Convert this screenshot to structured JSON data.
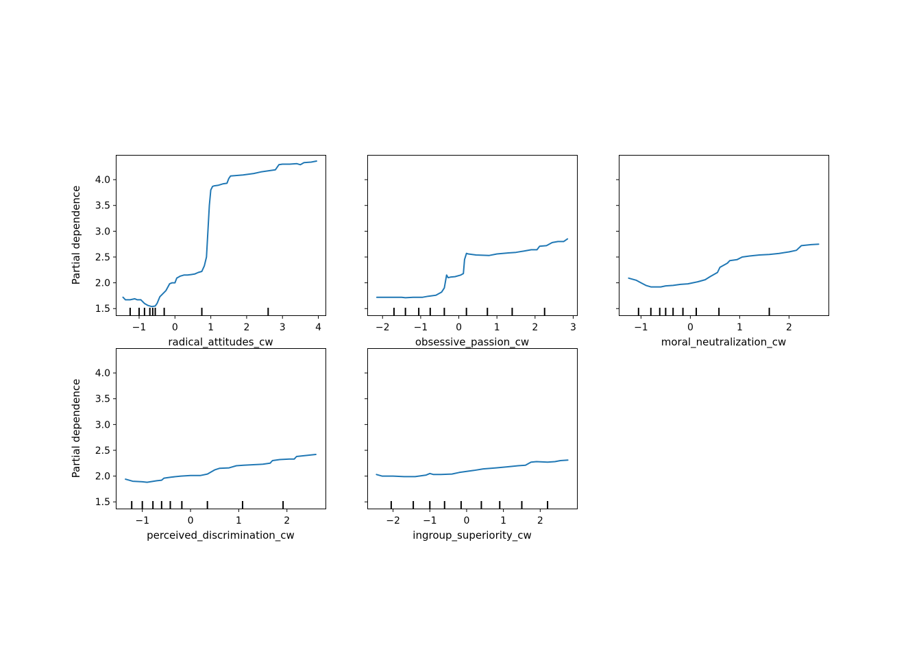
{
  "chart_data": [
    {
      "type": "line",
      "xlabel": "radical_attitudes_cw",
      "ylabel": "Partial dependence",
      "xlim": [
        -1.65,
        4.2
      ],
      "ylim": [
        1.37,
        4.48
      ],
      "xticks": [
        -1,
        0,
        1,
        2,
        3,
        4
      ],
      "yticks": [
        1.5,
        2.0,
        2.5,
        3.0,
        3.5,
        4.0
      ],
      "ytick_labels_visible": true,
      "color": "#1f77b4",
      "x": [
        -1.45,
        -1.38,
        -1.25,
        -1.12,
        -1.05,
        -0.95,
        -0.85,
        -0.75,
        -0.65,
        -0.55,
        -0.5,
        -0.42,
        -0.35,
        -0.25,
        -0.15,
        -0.08,
        0.0,
        0.05,
        0.15,
        0.25,
        0.35,
        0.45,
        0.55,
        0.65,
        0.75,
        0.82,
        0.88,
        0.92,
        0.96,
        1.0,
        1.05,
        1.1,
        1.2,
        1.35,
        1.45,
        1.5,
        1.55,
        1.7,
        1.9,
        2.2,
        2.4,
        2.6,
        2.8,
        2.9,
        3.0,
        3.2,
        3.4,
        3.5,
        3.6,
        3.8,
        3.95
      ],
      "y": [
        1.72,
        1.67,
        1.67,
        1.69,
        1.67,
        1.67,
        1.6,
        1.56,
        1.54,
        1.55,
        1.6,
        1.73,
        1.78,
        1.85,
        1.98,
        2.0,
        2.0,
        2.09,
        2.13,
        2.15,
        2.15,
        2.16,
        2.17,
        2.2,
        2.22,
        2.33,
        2.5,
        3.0,
        3.5,
        3.8,
        3.87,
        3.88,
        3.89,
        3.92,
        3.93,
        4.02,
        4.07,
        4.08,
        4.09,
        4.12,
        4.15,
        4.17,
        4.19,
        4.29,
        4.3,
        4.3,
        4.31,
        4.29,
        4.33,
        4.34,
        4.36
      ],
      "rug": [
        -1.25,
        -1.0,
        -0.85,
        -0.7,
        -0.62,
        -0.55,
        -0.3,
        0.75,
        2.6
      ]
    },
    {
      "type": "line",
      "xlabel": "obsessive_passion_cw",
      "ylabel": "",
      "xlim": [
        -2.4,
        3.1
      ],
      "ylim": [
        1.37,
        4.48
      ],
      "xticks": [
        -2,
        -1,
        0,
        1,
        2,
        3
      ],
      "yticks": [
        1.5,
        2.0,
        2.5,
        3.0,
        3.5,
        4.0
      ],
      "ytick_labels_visible": false,
      "color": "#1f77b4",
      "x": [
        -2.15,
        -1.8,
        -1.5,
        -1.4,
        -1.2,
        -0.95,
        -0.8,
        -0.6,
        -0.45,
        -0.38,
        -0.32,
        -0.28,
        -0.22,
        -0.1,
        0.05,
        0.12,
        0.15,
        0.2,
        0.25,
        0.45,
        0.8,
        1.0,
        1.3,
        1.5,
        1.75,
        1.9,
        2.05,
        2.12,
        2.3,
        2.45,
        2.6,
        2.75,
        2.85
      ],
      "y": [
        1.72,
        1.72,
        1.72,
        1.71,
        1.72,
        1.72,
        1.74,
        1.76,
        1.82,
        1.9,
        2.15,
        2.1,
        2.11,
        2.12,
        2.15,
        2.18,
        2.45,
        2.57,
        2.56,
        2.54,
        2.53,
        2.56,
        2.58,
        2.59,
        2.62,
        2.64,
        2.64,
        2.71,
        2.72,
        2.78,
        2.8,
        2.8,
        2.85
      ],
      "rug": [
        -1.7,
        -1.4,
        -1.05,
        -0.75,
        -0.38,
        0.2,
        0.75,
        1.4,
        2.25
      ]
    },
    {
      "type": "line",
      "xlabel": "moral_neutralization_cw",
      "ylabel": "",
      "xlim": [
        -1.45,
        2.8
      ],
      "ylim": [
        1.37,
        4.48
      ],
      "xticks": [
        -1,
        0,
        1,
        2
      ],
      "yticks": [
        1.5,
        2.0,
        2.5,
        3.0,
        3.5,
        4.0
      ],
      "ytick_labels_visible": false,
      "color": "#1f77b4",
      "x": [
        -1.25,
        -1.1,
        -1.0,
        -0.9,
        -0.8,
        -0.7,
        -0.6,
        -0.5,
        -0.35,
        -0.2,
        -0.05,
        0.05,
        0.15,
        0.3,
        0.4,
        0.55,
        0.6,
        0.75,
        0.8,
        0.95,
        1.05,
        1.2,
        1.4,
        1.6,
        1.8,
        2.0,
        2.15,
        2.25,
        2.45,
        2.6
      ],
      "y": [
        2.09,
        2.05,
        2.0,
        1.95,
        1.92,
        1.92,
        1.92,
        1.94,
        1.95,
        1.97,
        1.98,
        2.0,
        2.02,
        2.06,
        2.12,
        2.2,
        2.3,
        2.38,
        2.43,
        2.45,
        2.5,
        2.52,
        2.54,
        2.55,
        2.57,
        2.6,
        2.63,
        2.72,
        2.74,
        2.75
      ],
      "rug": [
        -1.05,
        -0.8,
        -0.62,
        -0.5,
        -0.35,
        -0.15,
        0.12,
        0.58,
        1.6
      ]
    },
    {
      "type": "line",
      "xlabel": "perceived_discrimination_cw",
      "ylabel": "Partial dependence",
      "xlim": [
        -1.55,
        2.8
      ],
      "ylim": [
        1.37,
        4.48
      ],
      "xticks": [
        -1,
        0,
        1,
        2
      ],
      "yticks": [
        1.5,
        2.0,
        2.5,
        3.0,
        3.5,
        4.0
      ],
      "ytick_labels_visible": true,
      "color": "#1f77b4",
      "x": [
        -1.35,
        -1.2,
        -1.0,
        -0.9,
        -0.7,
        -0.6,
        -0.55,
        -0.4,
        -0.2,
        0.0,
        0.2,
        0.35,
        0.5,
        0.6,
        0.8,
        0.95,
        1.1,
        1.3,
        1.5,
        1.65,
        1.7,
        1.85,
        2.05,
        2.15,
        2.2,
        2.4,
        2.6
      ],
      "y": [
        1.94,
        1.9,
        1.89,
        1.88,
        1.91,
        1.92,
        1.96,
        1.98,
        2.0,
        2.01,
        2.01,
        2.04,
        2.12,
        2.15,
        2.16,
        2.2,
        2.21,
        2.22,
        2.23,
        2.25,
        2.3,
        2.32,
        2.33,
        2.33,
        2.38,
        2.4,
        2.42
      ],
      "rug": [
        -1.22,
        -1.0,
        -0.78,
        -0.6,
        -0.42,
        -0.18,
        0.35,
        1.08,
        1.92
      ]
    },
    {
      "type": "line",
      "xlabel": "ingroup_superiority_cw",
      "ylabel": "",
      "xlim": [
        -2.7,
        3.0
      ],
      "ylim": [
        1.37,
        4.48
      ],
      "xticks": [
        -2,
        -1,
        0,
        1,
        2
      ],
      "yticks": [
        1.5,
        2.0,
        2.5,
        3.0,
        3.5,
        4.0
      ],
      "ytick_labels_visible": false,
      "color": "#1f77b4",
      "x": [
        -2.45,
        -2.3,
        -2.0,
        -1.7,
        -1.4,
        -1.1,
        -1.0,
        -0.9,
        -0.7,
        -0.4,
        -0.2,
        0.0,
        0.2,
        0.45,
        0.8,
        1.1,
        1.4,
        1.6,
        1.75,
        1.9,
        2.2,
        2.4,
        2.55,
        2.75
      ],
      "y": [
        2.03,
        2.0,
        2.0,
        1.99,
        1.99,
        2.02,
        2.05,
        2.03,
        2.03,
        2.04,
        2.07,
        2.09,
        2.11,
        2.14,
        2.16,
        2.18,
        2.2,
        2.21,
        2.27,
        2.28,
        2.27,
        2.28,
        2.3,
        2.31
      ],
      "rug": [
        -2.05,
        -1.45,
        -1.0,
        -0.6,
        -0.15,
        0.4,
        0.9,
        1.5,
        2.2
      ]
    }
  ]
}
